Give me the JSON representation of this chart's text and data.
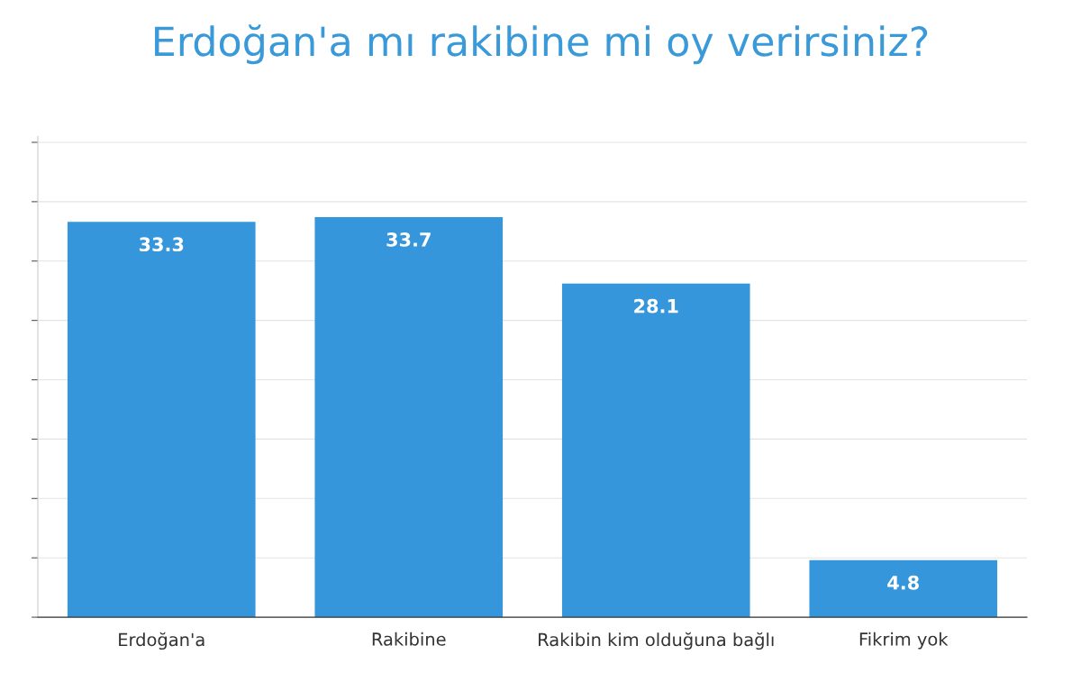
{
  "chart_data": {
    "type": "bar",
    "title": "Erdoğan'a mı rakibine mi oy verirsiniz?",
    "categories": [
      "Erdoğan'a",
      "Rakibine",
      "Rakibin kim olduğuna bağlı",
      "Fikrim yok"
    ],
    "values": [
      33.3,
      33.7,
      28.1,
      4.8
    ],
    "color": "#3596db",
    "data_labels": true,
    "ylim": [
      0,
      40.5
    ],
    "yticks": [
      {
        "value": 0,
        "label": null
      },
      {
        "value": 5,
        "label": null
      },
      {
        "value": 10,
        "label": null
      },
      {
        "value": 15,
        "label": null
      },
      {
        "value": 20,
        "label": null
      },
      {
        "value": 25,
        "label": null
      },
      {
        "value": 30,
        "label": null
      },
      {
        "value": 35,
        "label": null
      },
      {
        "value": 40,
        "label": null
      }
    ],
    "grid": "y"
  }
}
